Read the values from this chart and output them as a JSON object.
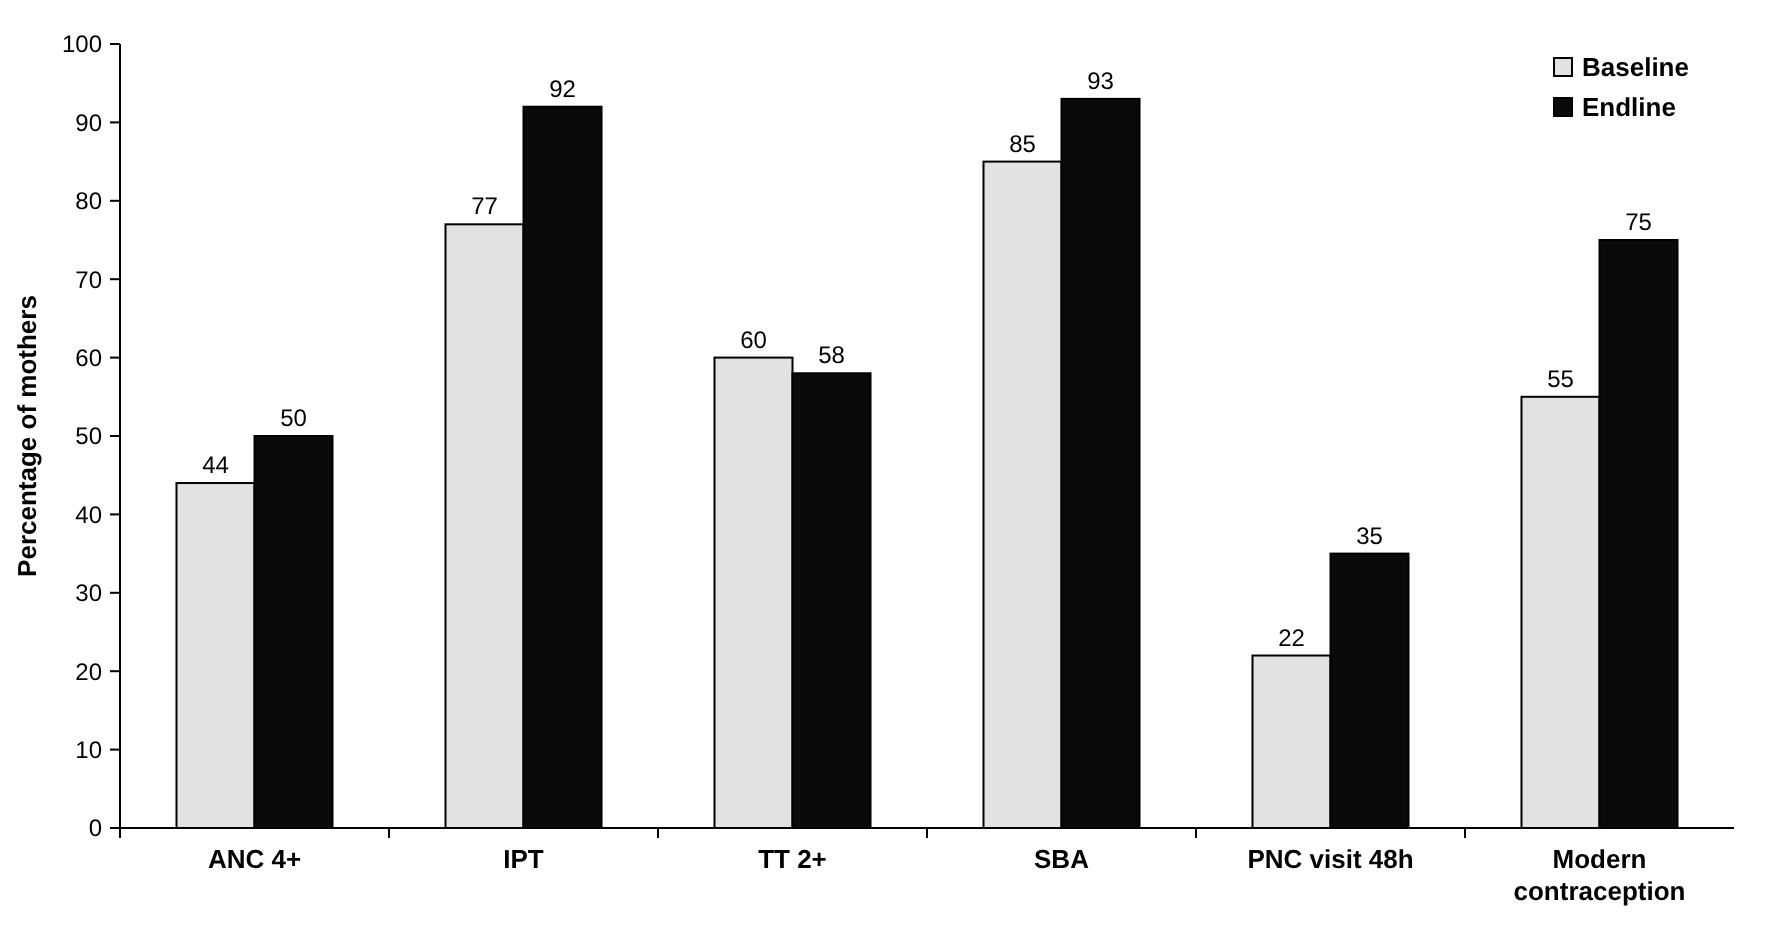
{
  "chart_data": {
    "type": "bar",
    "ylabel": "Percentage of mothers",
    "categories": [
      "ANC 4+",
      "IPT",
      "TT 2+",
      "SBA",
      "PNC visit 48h",
      "Modern contraception"
    ],
    "series": [
      {
        "name": "Baseline",
        "color": "#e2e2e2",
        "values": [
          44,
          77,
          60,
          85,
          22,
          55
        ]
      },
      {
        "name": "Endline",
        "color": "#0a0a0a",
        "values": [
          50,
          92,
          58,
          93,
          35,
          75
        ]
      }
    ],
    "ylim": [
      0,
      100
    ],
    "yticks": [
      0,
      10,
      20,
      30,
      40,
      50,
      60,
      70,
      80,
      90,
      100
    ],
    "data_labels": true,
    "legend": "top right",
    "grid": false
  }
}
